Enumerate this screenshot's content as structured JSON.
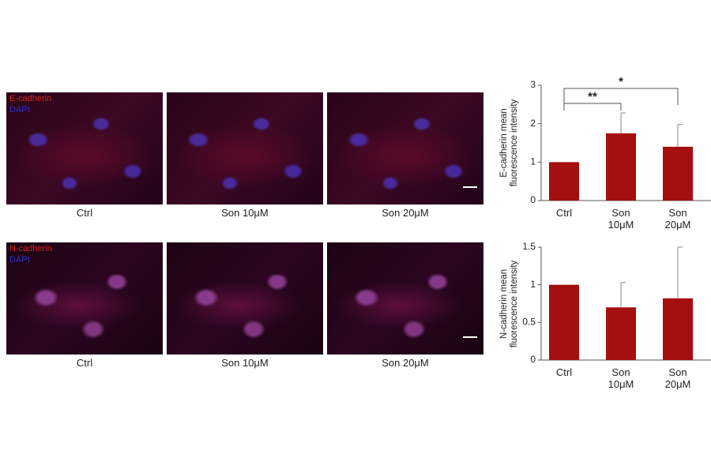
{
  "panels": [
    {
      "markers": [
        "E-cadherin",
        "DAPI"
      ],
      "labels": [
        "Ctrl",
        "Son 10μM",
        "Son 20μM"
      ]
    },
    {
      "markers": [
        "N-cadherin",
        "DAPI"
      ],
      "labels": [
        "Ctrl",
        "Son 10μM",
        "Son 20μM"
      ]
    }
  ],
  "chart_data": [
    {
      "type": "bar",
      "ylabel": "E-cadherin mean fluorescence intensity",
      "categories": [
        "Ctrl",
        "Son 10μM",
        "Son 20μM"
      ],
      "values": [
        1.0,
        1.75,
        1.4
      ],
      "errors": [
        null,
        0.53,
        0.58
      ],
      "color": "#a50f0f",
      "ylim": [
        0,
        3
      ],
      "yticks": [
        0,
        1,
        2,
        3
      ],
      "significance": [
        {
          "from": 0,
          "to": 1,
          "label": "**"
        },
        {
          "from": 0,
          "to": 2,
          "label": "*"
        }
      ]
    },
    {
      "type": "bar",
      "ylabel": "N-cadherin mean fluorescence intensity",
      "categories": [
        "Ctrl",
        "Son 10μM",
        "Son 20μM"
      ],
      "values": [
        1.0,
        0.7,
        0.82
      ],
      "errors": [
        null,
        0.33,
        0.68
      ],
      "color": "#a50f0f",
      "ylim": [
        0,
        1.5
      ],
      "yticks": [
        0,
        0.5,
        1,
        1.5
      ]
    }
  ]
}
